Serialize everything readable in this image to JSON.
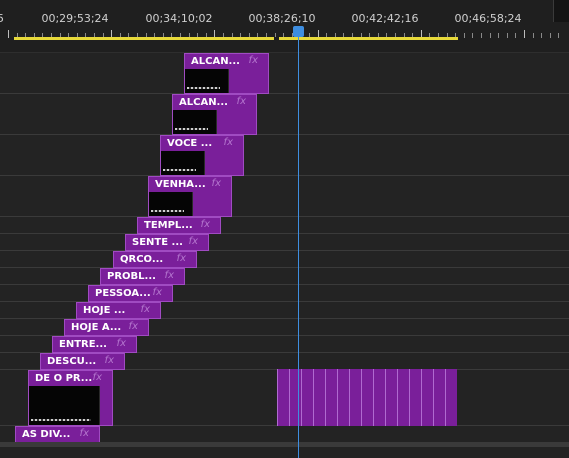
{
  "ruler": {
    "timecodes": [
      "5",
      "00;29;53;24",
      "00;34;10;02",
      "00;38;26;10",
      "00;42;42;16",
      "00;46;58;24"
    ]
  },
  "clips": [
    {
      "name": "ALCAN...",
      "fx": "fx",
      "thumbnail": true
    },
    {
      "name": "ALCAN...",
      "fx": "fx",
      "thumbnail": true
    },
    {
      "name": "VOCE ...",
      "fx": "fx",
      "thumbnail": true
    },
    {
      "name": "VENHA...",
      "fx": "fx",
      "thumbnail": true
    },
    {
      "name": "TEMPL...",
      "fx": "fx",
      "thumbnail": false
    },
    {
      "name": "SENTE ...",
      "fx": "fx",
      "thumbnail": false
    },
    {
      "name": "QRCO...",
      "fx": "fx",
      "thumbnail": false
    },
    {
      "name": "PROBL...",
      "fx": "fx",
      "thumbnail": false
    },
    {
      "name": "PESSOA...",
      "fx": "fx",
      "thumbnail": false
    },
    {
      "name": "HOJE ...",
      "fx": "fx",
      "thumbnail": false
    },
    {
      "name": "HOJE A...",
      "fx": "fx",
      "thumbnail": false
    },
    {
      "name": "ENTRE...",
      "fx": "fx",
      "thumbnail": false
    },
    {
      "name": "DESCU...",
      "fx": "fx",
      "thumbnail": false
    },
    {
      "name": "DE O PR...",
      "fx": "fx",
      "thumbnail": true
    },
    {
      "name": "AS DIV...",
      "fx": "fx",
      "thumbnail": false
    }
  ],
  "colors": {
    "clip": "#7a1f9a",
    "playhead": "#3e8ee0",
    "work_area": "#e7d93a",
    "background": "#232323"
  }
}
